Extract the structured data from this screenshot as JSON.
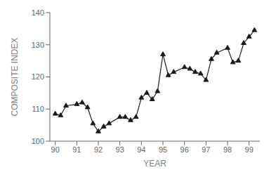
{
  "chart_data": {
    "type": "line",
    "x": [
      1990.0,
      1990.25,
      1990.5,
      1991.0,
      1991.25,
      1991.5,
      1991.75,
      1992.0,
      1992.25,
      1992.5,
      1993.0,
      1993.25,
      1993.5,
      1993.75,
      1994.0,
      1994.25,
      1994.5,
      1994.75,
      1995.0,
      1995.25,
      1995.5,
      1996.0,
      1996.25,
      1996.5,
      1996.75,
      1997.0,
      1997.25,
      1997.5,
      1998.0,
      1998.25,
      1998.5,
      1998.75,
      1999.0,
      1999.25
    ],
    "values": [
      108.5,
      108.0,
      111.0,
      111.5,
      112.0,
      110.5,
      105.5,
      103.0,
      104.5,
      105.5,
      107.5,
      107.5,
      106.5,
      107.5,
      113.5,
      115.0,
      113.0,
      115.5,
      127.0,
      120.5,
      121.5,
      123.0,
      122.5,
      121.5,
      121.0,
      119.0,
      125.5,
      127.5,
      129.0,
      124.5,
      125.0,
      130.5,
      132.5,
      134.5
    ],
    "xlim": [
      1989.75,
      1999.5
    ],
    "ylim": [
      100,
      140
    ],
    "xticks": [
      {
        "value": 1990,
        "label": "90"
      },
      {
        "value": 1991,
        "label": "91"
      },
      {
        "value": 1992,
        "label": "92"
      },
      {
        "value": 1993,
        "label": "93"
      },
      {
        "value": 1994,
        "label": "94"
      },
      {
        "value": 1995,
        "label": "95"
      },
      {
        "value": 1996,
        "label": "96"
      },
      {
        "value": 1997,
        "label": "97"
      },
      {
        "value": 1998,
        "label": "98"
      },
      {
        "value": 1999,
        "label": "99"
      }
    ],
    "yticks": [
      100,
      110,
      120,
      130,
      140
    ],
    "xlabel": "YEAR",
    "ylabel": "COMPOSITE INDEX",
    "color": "#1a1a1a",
    "marker": "triangle",
    "grid": false
  }
}
